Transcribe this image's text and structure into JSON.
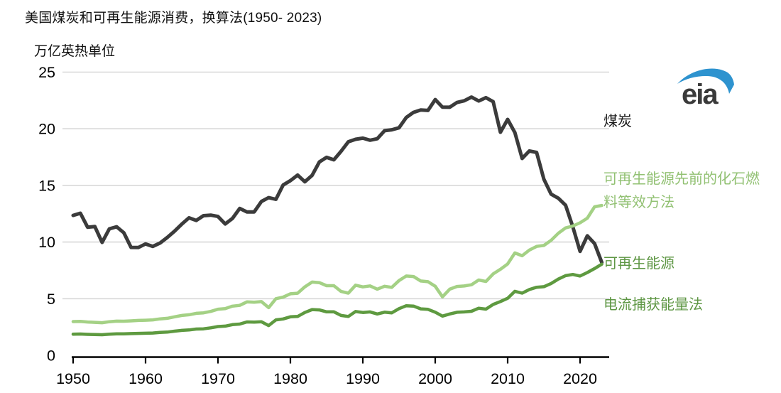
{
  "header": {
    "title": "美国煤炭和可再生能源消费，换算法(1950- 2023)",
    "subtitle": "万亿英热单位"
  },
  "logo": {
    "text": "eia",
    "swoosh_color": "#2e93cf",
    "text_color": "#3a3a3a"
  },
  "colors": {
    "background": "#ffffff",
    "gridline": "#d8d8d8",
    "axis": "#000000",
    "coal_line": "#3b3b3b",
    "renewables_previous_line": "#a4d185",
    "renewables_current_line": "#5e9a40"
  },
  "chart_data": {
    "type": "line",
    "title": "美国煤炭和可再生能源消费，换算法(1950- 2023)",
    "ylabel": "万亿英热单位",
    "xlabel": "",
    "xlim": [
      1950,
      2024
    ],
    "ylim": [
      0,
      25
    ],
    "grid": "horizontal",
    "legend_position": "right-outside",
    "yticks": [
      0,
      5,
      10,
      15,
      20,
      25
    ],
    "xticks": [
      1950,
      1960,
      1970,
      1980,
      1990,
      2000,
      2010,
      2020
    ],
    "x": [
      1950,
      1951,
      1952,
      1953,
      1954,
      1955,
      1956,
      1957,
      1958,
      1959,
      1960,
      1961,
      1962,
      1963,
      1964,
      1965,
      1966,
      1967,
      1968,
      1969,
      1970,
      1971,
      1972,
      1973,
      1974,
      1975,
      1976,
      1977,
      1978,
      1979,
      1980,
      1981,
      1982,
      1983,
      1984,
      1985,
      1986,
      1987,
      1988,
      1989,
      1990,
      1991,
      1992,
      1993,
      1994,
      1995,
      1996,
      1997,
      1998,
      1999,
      2000,
      2001,
      2002,
      2003,
      2004,
      2005,
      2006,
      2007,
      2008,
      2009,
      2010,
      2011,
      2012,
      2013,
      2014,
      2015,
      2016,
      2017,
      2018,
      2019,
      2020,
      2021,
      2022,
      2023
    ],
    "series": [
      {
        "id": "coal",
        "name": "煤炭",
        "color": "#3b3b3b",
        "width": 5,
        "values": [
          12.35,
          12.55,
          11.31,
          11.37,
          9.97,
          11.17,
          11.35,
          10.82,
          9.53,
          9.52,
          9.84,
          9.62,
          9.91,
          10.41,
          10.96,
          11.58,
          12.14,
          11.91,
          12.33,
          12.38,
          12.26,
          11.6,
          12.08,
          12.97,
          12.66,
          12.66,
          13.58,
          13.92,
          13.77,
          15.04,
          15.42,
          15.91,
          15.32,
          15.89,
          17.07,
          17.48,
          17.26,
          18.01,
          18.85,
          19.07,
          19.17,
          18.99,
          19.12,
          19.83,
          19.91,
          20.09,
          21.0,
          21.45,
          21.66,
          21.62,
          22.58,
          21.91,
          21.9,
          22.32,
          22.47,
          22.8,
          22.45,
          22.75,
          22.39,
          19.69,
          20.83,
          19.66,
          17.38,
          18.04,
          17.91,
          15.55,
          14.23,
          13.87,
          13.25,
          11.34,
          9.18,
          10.55,
          9.87,
          8.2
        ]
      },
      {
        "id": "renewables-previous-method",
        "name": "可再生能源 先前的化石燃料等效方法",
        "color": "#a4d185",
        "width": 4.5,
        "values": [
          2.98,
          2.99,
          2.94,
          2.91,
          2.88,
          2.97,
          3.02,
          3.01,
          3.04,
          3.08,
          3.1,
          3.13,
          3.22,
          3.27,
          3.4,
          3.52,
          3.58,
          3.71,
          3.75,
          3.88,
          4.07,
          4.13,
          4.34,
          4.41,
          4.72,
          4.69,
          4.74,
          4.21,
          5.0,
          5.14,
          5.43,
          5.48,
          6.05,
          6.47,
          6.42,
          6.15,
          6.15,
          5.64,
          5.49,
          6.19,
          6.04,
          6.13,
          5.84,
          6.1,
          6.0,
          6.6,
          7.0,
          6.96,
          6.56,
          6.5,
          6.1,
          5.16,
          5.84,
          6.08,
          6.12,
          6.23,
          6.65,
          6.52,
          7.19,
          7.6,
          8.07,
          9.04,
          8.79,
          9.29,
          9.62,
          9.7,
          10.15,
          10.78,
          11.25,
          11.42,
          11.7,
          12.11,
          13.11,
          13.23
        ]
      },
      {
        "id": "renewables-current-method",
        "name": "可再生能源 电流捕获能量法",
        "color": "#5e9a40",
        "width": 4.5,
        "values": [
          1.87,
          1.88,
          1.85,
          1.83,
          1.82,
          1.87,
          1.9,
          1.9,
          1.92,
          1.94,
          1.95,
          1.97,
          2.02,
          2.05,
          2.13,
          2.2,
          2.24,
          2.32,
          2.34,
          2.43,
          2.54,
          2.58,
          2.71,
          2.76,
          2.95,
          2.93,
          2.96,
          2.63,
          3.13,
          3.21,
          3.4,
          3.43,
          3.78,
          4.04,
          4.01,
          3.84,
          3.84,
          3.52,
          3.43,
          3.87,
          3.78,
          3.83,
          3.65,
          3.81,
          3.75,
          4.12,
          4.38,
          4.35,
          4.1,
          4.06,
          3.81,
          3.46,
          3.65,
          3.8,
          3.83,
          3.89,
          4.16,
          4.08,
          4.49,
          4.75,
          5.04,
          5.65,
          5.49,
          5.81,
          6.01,
          6.06,
          6.34,
          6.73,
          7.03,
          7.14,
          7.0,
          7.31,
          7.66,
          8.05
        ]
      }
    ],
    "right_labels": [
      {
        "id": "coal-label",
        "lines": [
          "煤炭"
        ],
        "color": "#1a1a1a",
        "at_value": 20.7
      },
      {
        "id": "renewables-previous-method-label",
        "lines": [
          "可再生能源先前的化石燃",
          "料等效方法"
        ],
        "color": "#92c173",
        "at_value": 14.6
      },
      {
        "id": "renewables-label",
        "lines": [
          "可再生能源"
        ],
        "color": "#5d9643",
        "at_value": 8.16
      },
      {
        "id": "current-method-label",
        "lines": [
          "电流捕获能量法"
        ],
        "color": "#5d9643",
        "at_value": 4.52
      }
    ]
  }
}
